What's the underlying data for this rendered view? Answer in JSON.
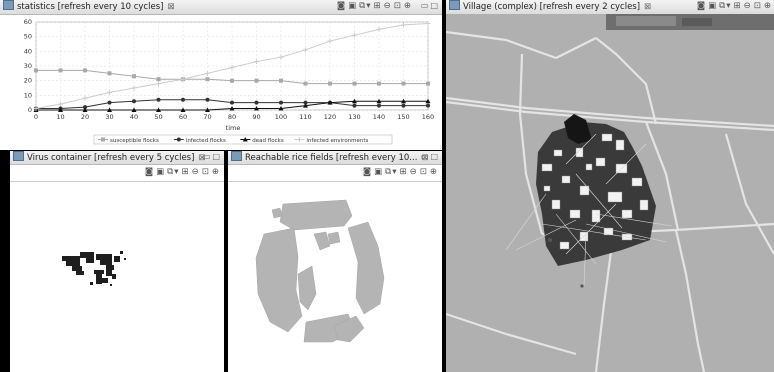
{
  "statistics": {
    "title": "statistics [refresh every 10 cycles]",
    "toolbar_icons": [
      "display-icon",
      "snapshot-icon",
      "layers-icon",
      "layout-icon",
      "zoom-out-icon",
      "zoom-fit-icon",
      "zoom-in-icon"
    ],
    "chart_data": {
      "type": "line",
      "xlabel": "time",
      "x": [
        0,
        10,
        20,
        30,
        40,
        50,
        60,
        70,
        80,
        90,
        100,
        110,
        120,
        130,
        140,
        150,
        160
      ],
      "xlim": [
        0,
        160
      ],
      "ylim": [
        0,
        60
      ],
      "y_ticks": [
        0,
        10,
        20,
        30,
        40,
        50,
        60
      ],
      "grid": true,
      "legend_position": "bottom",
      "series": [
        {
          "name": "susceptible flocks",
          "color": "#a8a8a8",
          "marker": "square",
          "values": [
            27,
            27,
            27,
            25,
            23,
            21,
            21,
            21,
            20,
            20,
            20,
            18,
            18,
            18,
            18,
            18,
            18
          ]
        },
        {
          "name": "infected flocks",
          "color": "#333333",
          "marker": "circle",
          "values": [
            1,
            1,
            2,
            5,
            6,
            7,
            7,
            7,
            5,
            5,
            5,
            5,
            5,
            3,
            3,
            3,
            3
          ]
        },
        {
          "name": "dead flocks",
          "color": "#111111",
          "marker": "triangle",
          "values": [
            0,
            0,
            0,
            0,
            0,
            0,
            0,
            0,
            1,
            1,
            1,
            3,
            5,
            6,
            6,
            6,
            6
          ]
        },
        {
          "name": "infected environments",
          "color": "#cccccc",
          "marker": "plus",
          "values": [
            1,
            4,
            8,
            12,
            15,
            18,
            21,
            25,
            29,
            33,
            36,
            41,
            47,
            51,
            55,
            58,
            59
          ]
        }
      ]
    }
  },
  "virus": {
    "title": "Virus container [refresh every 5 cycles]",
    "toolbar_icons": [
      "display-icon",
      "snapshot-icon",
      "layers-icon",
      "layout-icon",
      "zoom-out-icon",
      "zoom-fit-icon",
      "zoom-in-icon"
    ]
  },
  "rice": {
    "title": "Reachable rice fields [refresh every 10...",
    "toolbar_icons": [
      "display-icon",
      "snapshot-icon",
      "layers-icon",
      "layout-icon",
      "zoom-out-icon",
      "zoom-fit-icon",
      "zoom-in-icon"
    ]
  },
  "village": {
    "title": "Village (complex) [refresh every 2 cycles]",
    "toolbar_icons": [
      "display-icon",
      "snapshot-icon",
      "layers-icon",
      "layout-icon",
      "zoom-out-icon",
      "zoom-fit-icon",
      "zoom-in-icon"
    ]
  },
  "colors": {
    "view_bg": "#b0b0b0",
    "fields": "#b3b3b3",
    "infected": "#222222",
    "roads": "#ececec"
  }
}
